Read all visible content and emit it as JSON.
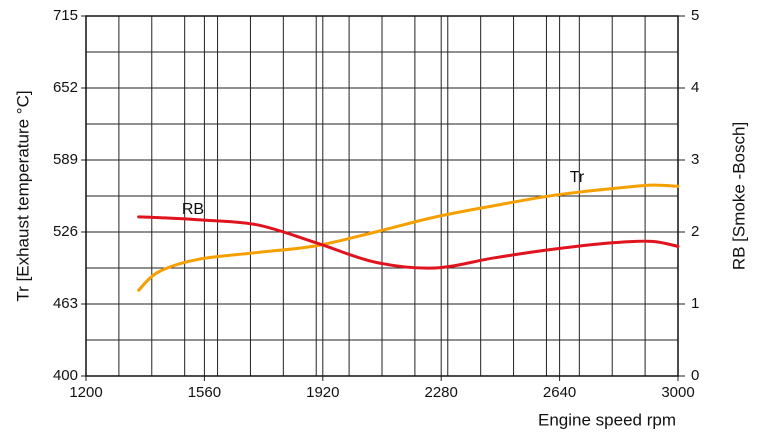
{
  "chart_data": {
    "type": "line",
    "x_label": "Engine speed rpm",
    "y_label": "Tr [Exhaust temperature °C]",
    "y2_label": "RB [Smoke -Bosch]",
    "x": [
      1360,
      1420,
      1540,
      1720,
      1900,
      2080,
      2260,
      2440,
      2620,
      2800,
      2920,
      3000
    ],
    "series": [
      {
        "name": "Tr",
        "color": "#f5a000",
        "values": [
          475,
          491,
          502,
          508,
          514,
          526,
          539,
          549,
          558,
          564,
          567,
          566
        ]
      },
      {
        "name": "RB",
        "color": "#e0141e",
        "axis": "y2",
        "values": [
          2.21,
          2.2,
          2.17,
          2.1,
          1.85,
          1.58,
          1.5,
          1.64,
          1.76,
          1.85,
          1.87,
          1.8
        ]
      }
    ],
    "xlim": [
      1200,
      3000
    ],
    "xticks": [
      1200,
      1560,
      1920,
      2280,
      2640,
      3000
    ],
    "ylim": [
      400,
      715
    ],
    "yticks": [
      400,
      463,
      526,
      589,
      652,
      715
    ],
    "y2lim": [
      0,
      5
    ],
    "y2ticks": [
      0,
      1,
      2,
      3,
      4,
      5
    ],
    "grid": true
  }
}
